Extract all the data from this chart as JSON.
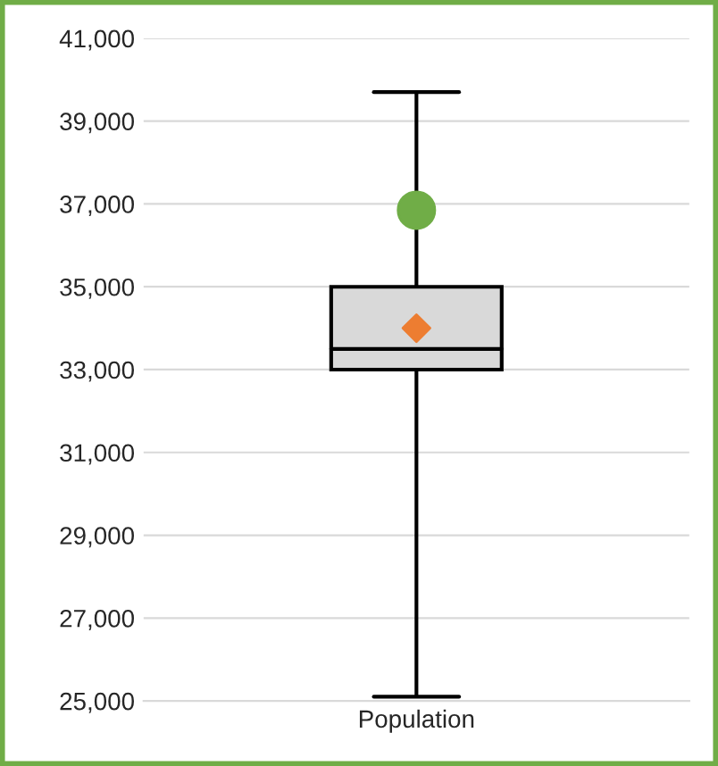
{
  "chart_data": {
    "type": "box",
    "categories": [
      "Population"
    ],
    "boxes": [
      {
        "low": 25100,
        "q1": 33000,
        "median": 33500,
        "q3": 35000,
        "high": 39700
      }
    ],
    "series": [
      {
        "type": "scatter",
        "x": [
          "Population"
        ],
        "values": [
          36850
        ],
        "color": "#70ad47",
        "marker": "circle"
      },
      {
        "type": "scatter",
        "x": [
          "Population"
        ],
        "values": [
          34000
        ],
        "color": "#ed7d31",
        "marker": "diamond"
      }
    ],
    "ylim": [
      25000,
      41000
    ],
    "yticks": [
      {
        "value": 25000,
        "label": "25,000"
      },
      {
        "value": 27000,
        "label": "27,000"
      },
      {
        "value": 29000,
        "label": "29,000"
      },
      {
        "value": 31000,
        "label": "31,000"
      },
      {
        "value": 33000,
        "label": "33,000"
      },
      {
        "value": 35000,
        "label": "35,000"
      },
      {
        "value": 37000,
        "label": "37,000"
      },
      {
        "value": 39000,
        "label": "39,000"
      },
      {
        "value": 41000,
        "label": "41,000"
      }
    ],
    "grid": "y",
    "color": "#d9d9d9"
  }
}
